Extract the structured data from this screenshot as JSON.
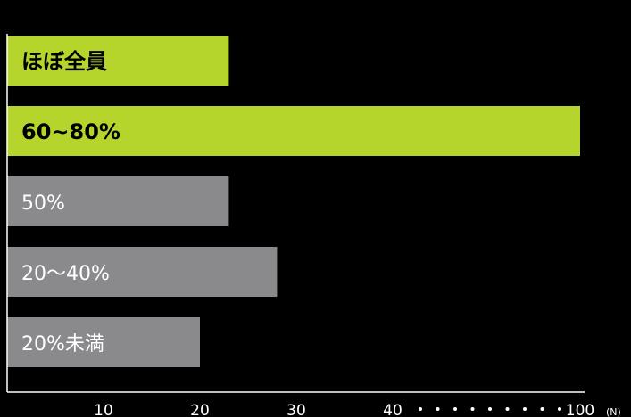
{
  "chart_data": {
    "type": "bar",
    "orientation": "horizontal",
    "categories": [
      "ほぼ全員",
      "60~80%",
      "50%",
      "20〜40%",
      "20%未満"
    ],
    "values": [
      23,
      100,
      23,
      28,
      20
    ],
    "highlighted": [
      true,
      true,
      false,
      false,
      false
    ],
    "x_ticks": [
      "10",
      "20",
      "30",
      "40",
      "100"
    ],
    "x_unit": "(N)",
    "axis_break": "40-100",
    "grid": false,
    "colors": {
      "highlight": "#b5d52c",
      "normal": "#8a8a8c",
      "highlight_text": "#000000",
      "normal_text": "#ffffff",
      "axis": "#ffffff",
      "background": "#000000"
    }
  }
}
